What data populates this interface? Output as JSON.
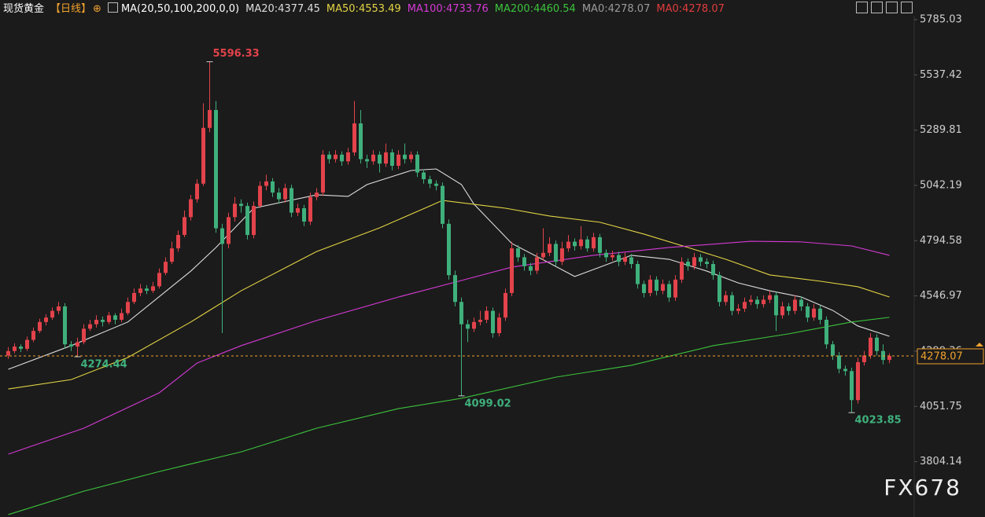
{
  "chart_data": {
    "type": "candlestick",
    "title": "现货黄金",
    "period": "【日线】",
    "indicator": "MA(20,50,100,200,0,0)",
    "up_color": "#e3434b",
    "down_color": "#3fb07c",
    "ylim": [
      3556.2,
      5802.6
    ],
    "yticks": [
      3804.14,
      4051.75,
      4299.36,
      4546.97,
      4794.58,
      5042.19,
      5289.81,
      5537.42,
      5785.03
    ],
    "candles": [
      [
        4280,
        4318,
        4265,
        4300
      ],
      [
        4300,
        4335,
        4290,
        4320
      ],
      [
        4320,
        4330,
        4295,
        4310
      ],
      [
        4310,
        4365,
        4300,
        4350
      ],
      [
        4350,
        4405,
        4340,
        4390
      ],
      [
        4390,
        4445,
        4380,
        4430
      ],
      [
        4430,
        4465,
        4415,
        4450
      ],
      [
        4450,
        4495,
        4440,
        4480
      ],
      [
        4480,
        4520,
        4465,
        4500
      ],
      [
        4500,
        4515,
        4310,
        4330
      ],
      [
        4330,
        4345,
        4300,
        4320
      ],
      [
        4320,
        4360,
        4274.44,
        4340
      ],
      [
        4340,
        4420,
        4330,
        4400
      ],
      [
        4400,
        4440,
        4390,
        4420
      ],
      [
        4420,
        4460,
        4405,
        4440
      ],
      [
        4440,
        4455,
        4410,
        4430
      ],
      [
        4430,
        4475,
        4420,
        4460
      ],
      [
        4460,
        4470,
        4420,
        4440
      ],
      [
        4440,
        4490,
        4430,
        4470
      ],
      [
        4470,
        4540,
        4460,
        4520
      ],
      [
        4520,
        4580,
        4510,
        4560
      ],
      [
        4560,
        4600,
        4545,
        4580
      ],
      [
        4580,
        4595,
        4555,
        4570
      ],
      [
        4570,
        4610,
        4560,
        4590
      ],
      [
        4590,
        4670,
        4580,
        4650
      ],
      [
        4650,
        4720,
        4640,
        4700
      ],
      [
        4700,
        4790,
        4690,
        4760
      ],
      [
        4760,
        4840,
        4745,
        4820
      ],
      [
        4820,
        4930,
        4810,
        4900
      ],
      [
        4900,
        5000,
        4885,
        4980
      ],
      [
        4980,
        5070,
        4965,
        5050
      ],
      [
        5050,
        5410,
        5040,
        5300
      ],
      [
        5300,
        5596.33,
        5280,
        5380
      ],
      [
        5380,
        5420,
        4830,
        4850
      ],
      [
        4850,
        4870,
        4380,
        4780
      ],
      [
        4780,
        4920,
        4760,
        4900
      ],
      [
        4900,
        4990,
        4880,
        4960
      ],
      [
        4960,
        4980,
        4920,
        4950
      ],
      [
        4950,
        4965,
        4800,
        4820
      ],
      [
        4820,
        4970,
        4805,
        4950
      ],
      [
        4950,
        5060,
        4940,
        5040
      ],
      [
        5040,
        5090,
        5020,
        5060
      ],
      [
        5060,
        5075,
        4990,
        5010
      ],
      [
        5010,
        5030,
        4960,
        4980
      ],
      [
        4980,
        5050,
        4965,
        5030
      ],
      [
        5030,
        5045,
        4900,
        4920
      ],
      [
        4920,
        4960,
        4905,
        4940
      ],
      [
        4940,
        4955,
        4860,
        4880
      ],
      [
        4880,
        5010,
        4865,
        4990
      ],
      [
        4990,
        5030,
        4975,
        5010
      ],
      [
        5010,
        5200,
        4995,
        5180
      ],
      [
        5180,
        5195,
        5140,
        5160
      ],
      [
        5160,
        5200,
        5145,
        5180
      ],
      [
        5180,
        5195,
        5130,
        5150
      ],
      [
        5150,
        5210,
        5135,
        5190
      ],
      [
        5190,
        5420,
        5175,
        5320
      ],
      [
        5320,
        5380,
        5140,
        5160
      ],
      [
        5160,
        5180,
        5120,
        5150
      ],
      [
        5150,
        5200,
        5135,
        5180
      ],
      [
        5180,
        5195,
        5100,
        5140
      ],
      [
        5140,
        5230,
        5125,
        5190
      ],
      [
        5190,
        5205,
        5110,
        5130
      ],
      [
        5130,
        5200,
        5115,
        5180
      ],
      [
        5180,
        5230,
        5140,
        5160
      ],
      [
        5160,
        5195,
        5145,
        5180
      ],
      [
        5180,
        5195,
        5080,
        5100
      ],
      [
        5100,
        5115,
        5050,
        5070
      ],
      [
        5070,
        5085,
        5030,
        5050
      ],
      [
        5050,
        5065,
        5020,
        5040
      ],
      [
        5040,
        5055,
        4850,
        4870
      ],
      [
        4870,
        4890,
        4620,
        4640
      ],
      [
        4640,
        4660,
        4500,
        4520
      ],
      [
        4520,
        4540,
        4099.02,
        4420
      ],
      [
        4420,
        4440,
        4340,
        4400
      ],
      [
        4400,
        4450,
        4385,
        4430
      ],
      [
        4430,
        4480,
        4415,
        4440
      ],
      [
        4440,
        4500,
        4425,
        4480
      ],
      [
        4480,
        4495,
        4360,
        4380
      ],
      [
        4380,
        4470,
        4365,
        4450
      ],
      [
        4450,
        4580,
        4435,
        4560
      ],
      [
        4560,
        4790,
        4545,
        4760
      ],
      [
        4760,
        4775,
        4700,
        4720
      ],
      [
        4720,
        4735,
        4660,
        4680
      ],
      [
        4680,
        4695,
        4640,
        4660
      ],
      [
        4660,
        4740,
        4645,
        4720
      ],
      [
        4720,
        4850,
        4705,
        4740
      ],
      [
        4740,
        4810,
        4725,
        4780
      ],
      [
        4780,
        4795,
        4680,
        4700
      ],
      [
        4700,
        4790,
        4685,
        4760
      ],
      [
        4760,
        4820,
        4745,
        4790
      ],
      [
        4790,
        4805,
        4750,
        4770
      ],
      [
        4770,
        4860,
        4755,
        4800
      ],
      [
        4800,
        4815,
        4745,
        4760
      ],
      [
        4760,
        4830,
        4745,
        4810
      ],
      [
        4810,
        4825,
        4720,
        4740
      ],
      [
        4740,
        4755,
        4700,
        4720
      ],
      [
        4720,
        4750,
        4705,
        4730
      ],
      [
        4730,
        4745,
        4680,
        4700
      ],
      [
        4700,
        4740,
        4685,
        4720
      ],
      [
        4720,
        4735,
        4670,
        4690
      ],
      [
        4690,
        4705,
        4580,
        4600
      ],
      [
        4600,
        4615,
        4540,
        4560
      ],
      [
        4560,
        4640,
        4545,
        4620
      ],
      [
        4620,
        4635,
        4550,
        4570
      ],
      [
        4570,
        4620,
        4555,
        4600
      ],
      [
        4600,
        4615,
        4520,
        4540
      ],
      [
        4540,
        4640,
        4525,
        4620
      ],
      [
        4620,
        4720,
        4605,
        4700
      ],
      [
        4700,
        4715,
        4660,
        4680
      ],
      [
        4680,
        4740,
        4665,
        4720
      ],
      [
        4720,
        4735,
        4680,
        4700
      ],
      [
        4700,
        4715,
        4670,
        4690
      ],
      [
        4690,
        4705,
        4620,
        4640
      ],
      [
        4640,
        4655,
        4500,
        4520
      ],
      [
        4520,
        4570,
        4505,
        4550
      ],
      [
        4550,
        4565,
        4460,
        4480
      ],
      [
        4480,
        4510,
        4465,
        4490
      ],
      [
        4490,
        4540,
        4475,
        4520
      ],
      [
        4520,
        4550,
        4505,
        4530
      ],
      [
        4530,
        4545,
        4490,
        4510
      ],
      [
        4510,
        4550,
        4495,
        4530
      ],
      [
        4530,
        4570,
        4515,
        4550
      ],
      [
        4550,
        4565,
        4390,
        4460
      ],
      [
        4460,
        4520,
        4445,
        4500
      ],
      [
        4500,
        4515,
        4460,
        4480
      ],
      [
        4480,
        4550,
        4465,
        4530
      ],
      [
        4530,
        4545,
        4480,
        4500
      ],
      [
        4500,
        4515,
        4430,
        4450
      ],
      [
        4450,
        4510,
        4435,
        4490
      ],
      [
        4490,
        4505,
        4420,
        4440
      ],
      [
        4440,
        4455,
        4310,
        4330
      ],
      [
        4330,
        4345,
        4260,
        4280
      ],
      [
        4280,
        4295,
        4200,
        4220
      ],
      [
        4220,
        4235,
        4190,
        4210
      ],
      [
        4210,
        4225,
        4023.85,
        4080
      ],
      [
        4080,
        4270,
        4065,
        4250
      ],
      [
        4250,
        4300,
        4235,
        4280
      ],
      [
        4280,
        4380,
        4265,
        4360
      ],
      [
        4360,
        4375,
        4280,
        4300
      ],
      [
        4300,
        4330,
        4240,
        4260
      ],
      [
        4260,
        4290,
        4245,
        4278.07
      ]
    ],
    "series": [
      {
        "name": "MA20:4377.45",
        "color": "#dddddd",
        "x": [
          0,
          10,
          19,
          29,
          33,
          39,
          49,
          54,
          57,
          64,
          68,
          72,
          74,
          80,
          86,
          90,
          94,
          99,
          105,
          111,
          116,
          121,
          126,
          131,
          135,
          140
        ],
        "values": [
          4218,
          4324,
          4430,
          4658,
          4764,
          4940,
          5000,
          4993,
          5046,
          5109,
          5116,
          5046,
          4958,
          4782,
          4694,
          4634,
          4676,
          4729,
          4711,
          4658,
          4605,
          4570,
          4542,
          4482,
          4412,
          4366
        ]
      },
      {
        "name": "MA50:4553.49",
        "color": "#e3d444",
        "x": [
          0,
          10,
          19,
          29,
          37,
          49,
          59,
          67,
          69,
          79,
          86,
          94,
          101,
          108,
          114,
          121,
          129,
          135,
          140
        ],
        "values": [
          4130,
          4172,
          4271,
          4430,
          4570,
          4746,
          4852,
          4950,
          4975,
          4940,
          4905,
          4877,
          4824,
          4764,
          4711,
          4641,
          4613,
          4588,
          4542
        ]
      },
      {
        "name": "MA100:4733.76",
        "color": "#d53ad5",
        "x": [
          0,
          12,
          24,
          30,
          37,
          49,
          62,
          72,
          80,
          93,
          105,
          118,
          126,
          134,
          140
        ],
        "values": [
          3838,
          3954,
          4113,
          4246,
          4324,
          4437,
          4542,
          4616,
          4676,
          4729,
          4764,
          4792,
          4789,
          4771,
          4729
        ]
      },
      {
        "name": "MA200:4460.54",
        "color": "#3cc43c",
        "x": [
          0,
          12,
          24,
          37,
          49,
          62,
          72,
          87,
          99,
          112,
          124,
          134,
          140
        ],
        "values": [
          3567,
          3672,
          3760,
          3848,
          3954,
          4042,
          4088,
          4183,
          4236,
          4324,
          4377,
          4430,
          4451
        ]
      }
    ],
    "extra_legend": [
      {
        "text": "MA0:4278.07",
        "color": "#9a9a9a"
      },
      {
        "text": "MA0:4278.07",
        "color": "#e23c3c"
      }
    ],
    "annotations": [
      {
        "value": 5596.33,
        "candle": 32,
        "at": "high"
      },
      {
        "value": 4274.44,
        "candle": 11,
        "at": "low"
      },
      {
        "value": 4099.02,
        "candle": 72,
        "at": "low"
      },
      {
        "value": 4023.85,
        "candle": 134,
        "at": "low"
      }
    ],
    "last_price": 4278.07,
    "last_color": "#f0a22e",
    "watermark": "FX678"
  }
}
